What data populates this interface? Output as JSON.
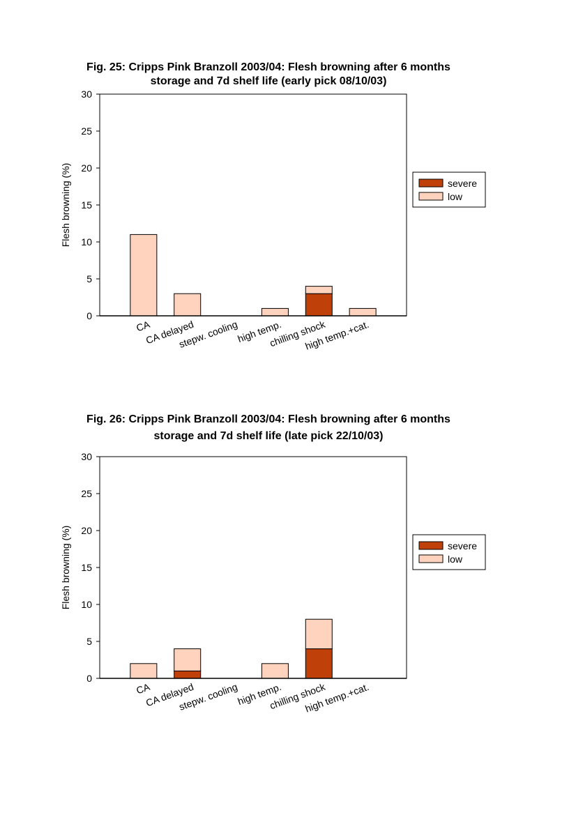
{
  "charts": [
    {
      "title_lines": [
        "Fig. 25: Cripps Pink Branzoll 2003/04: Flesh browning after 6 months",
        "storage and 7d shelf life (early pick 08/10/03)"
      ]
    },
    {
      "title_lines": [
        "Fig. 26: Cripps Pink Branzoll 2003/04: Flesh browning after 6 months",
        "storage and 7d shelf life (late pick 22/10/03)"
      ]
    }
  ],
  "colors": {
    "severe": "#c0400a",
    "low": "#ffd3bd",
    "axis": "#000000"
  },
  "chart_data": [
    {
      "type": "bar",
      "stacked": true,
      "title": "Fig. 25: Cripps Pink Branzoll 2003/04: Flesh browning after 6 months storage and 7d shelf life (early pick 08/10/03)",
      "xlabel": "",
      "ylabel": "Flesh browning (%)",
      "ylim": [
        0,
        30
      ],
      "yticks": [
        0,
        5,
        10,
        15,
        20,
        25,
        30
      ],
      "grid": false,
      "legend": "right",
      "categories": [
        "CA",
        "CA delayed",
        "stepw. cooling",
        "high temp.",
        "chilling shock",
        "high temp.+cat."
      ],
      "series": [
        {
          "name": "severe",
          "values": [
            0,
            0,
            0,
            0,
            3,
            0
          ]
        },
        {
          "name": "low",
          "values": [
            11,
            3,
            0,
            1,
            1,
            1
          ]
        }
      ]
    },
    {
      "type": "bar",
      "stacked": true,
      "title": "Fig. 26: Cripps Pink Branzoll 2003/04: Flesh browning after 6 months storage and 7d shelf life (late pick 22/10/03)",
      "xlabel": "",
      "ylabel": "Flesh browning (%)",
      "ylim": [
        0,
        30
      ],
      "yticks": [
        0,
        5,
        10,
        15,
        20,
        25,
        30
      ],
      "grid": false,
      "legend": "right",
      "categories": [
        "CA",
        "CA delayed",
        "stepw. cooling",
        "high temp.",
        "chilling shock",
        "high temp.+cat."
      ],
      "series": [
        {
          "name": "severe",
          "values": [
            0,
            1,
            0,
            0,
            4,
            0
          ]
        },
        {
          "name": "low",
          "values": [
            2,
            3,
            0,
            2,
            4,
            0
          ]
        }
      ]
    }
  ]
}
